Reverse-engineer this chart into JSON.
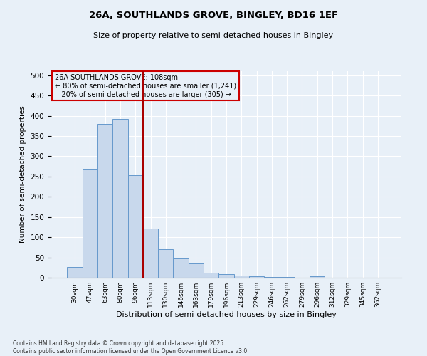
{
  "title1": "26A, SOUTHLANDS GROVE, BINGLEY, BD16 1EF",
  "title2": "Size of property relative to semi-detached houses in Bingley",
  "xlabel": "Distribution of semi-detached houses by size in Bingley",
  "ylabel": "Number of semi-detached properties",
  "footnote": "Contains HM Land Registry data © Crown copyright and database right 2025.\nContains public sector information licensed under the Open Government Licence v3.0.",
  "categories": [
    "30sqm",
    "47sqm",
    "63sqm",
    "80sqm",
    "96sqm",
    "113sqm",
    "130sqm",
    "146sqm",
    "163sqm",
    "179sqm",
    "196sqm",
    "213sqm",
    "229sqm",
    "246sqm",
    "262sqm",
    "279sqm",
    "296sqm",
    "312sqm",
    "329sqm",
    "345sqm",
    "362sqm"
  ],
  "values": [
    27,
    268,
    380,
    393,
    253,
    122,
    70,
    48,
    35,
    13,
    8,
    5,
    3,
    2,
    2,
    0,
    3,
    0,
    0,
    0,
    0
  ],
  "bar_color": "#c8d8ec",
  "bar_edge_color": "#6699cc",
  "vline_color": "#aa0000",
  "annotation_title": "26A SOUTHLANDS GROVE: 108sqm",
  "annotation_line2": "← 80% of semi-detached houses are smaller (1,241)",
  "annotation_line3": "   20% of semi-detached houses are larger (305) →",
  "annotation_box_color": "#cc0000",
  "ylim": [
    0,
    510
  ],
  "yticks": [
    0,
    50,
    100,
    150,
    200,
    250,
    300,
    350,
    400,
    450,
    500
  ],
  "plot_bg_color": "#e8f0f8",
  "fig_bg_color": "#e8f0f8",
  "grid_color": "#ffffff"
}
